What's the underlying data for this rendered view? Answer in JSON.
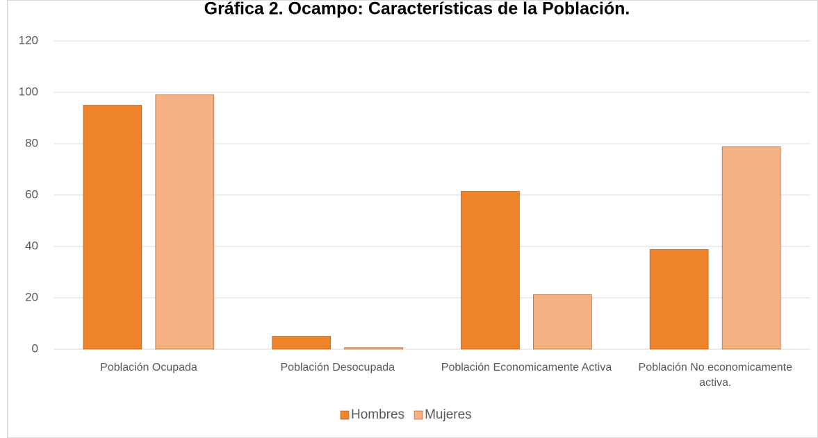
{
  "chart_data": {
    "type": "bar",
    "title": "Gráfica 2. Ocampo: Características de la Población.",
    "categories": [
      "Población Ocupada",
      "Población Desocupada",
      "Población Economicamente Activa",
      "Población No economicamente activa."
    ],
    "series": [
      {
        "name": "Hombres",
        "color": "#f0842a",
        "values": [
          95,
          5,
          61.5,
          38.8
        ]
      },
      {
        "name": "Mujeres",
        "color": "#f5b184",
        "values": [
          99,
          0.6,
          21.2,
          78.8
        ]
      }
    ],
    "ylim": [
      0,
      120
    ],
    "yticks": [
      0,
      20,
      40,
      60,
      80,
      100,
      120
    ],
    "grid": true,
    "legend": "bottom"
  }
}
